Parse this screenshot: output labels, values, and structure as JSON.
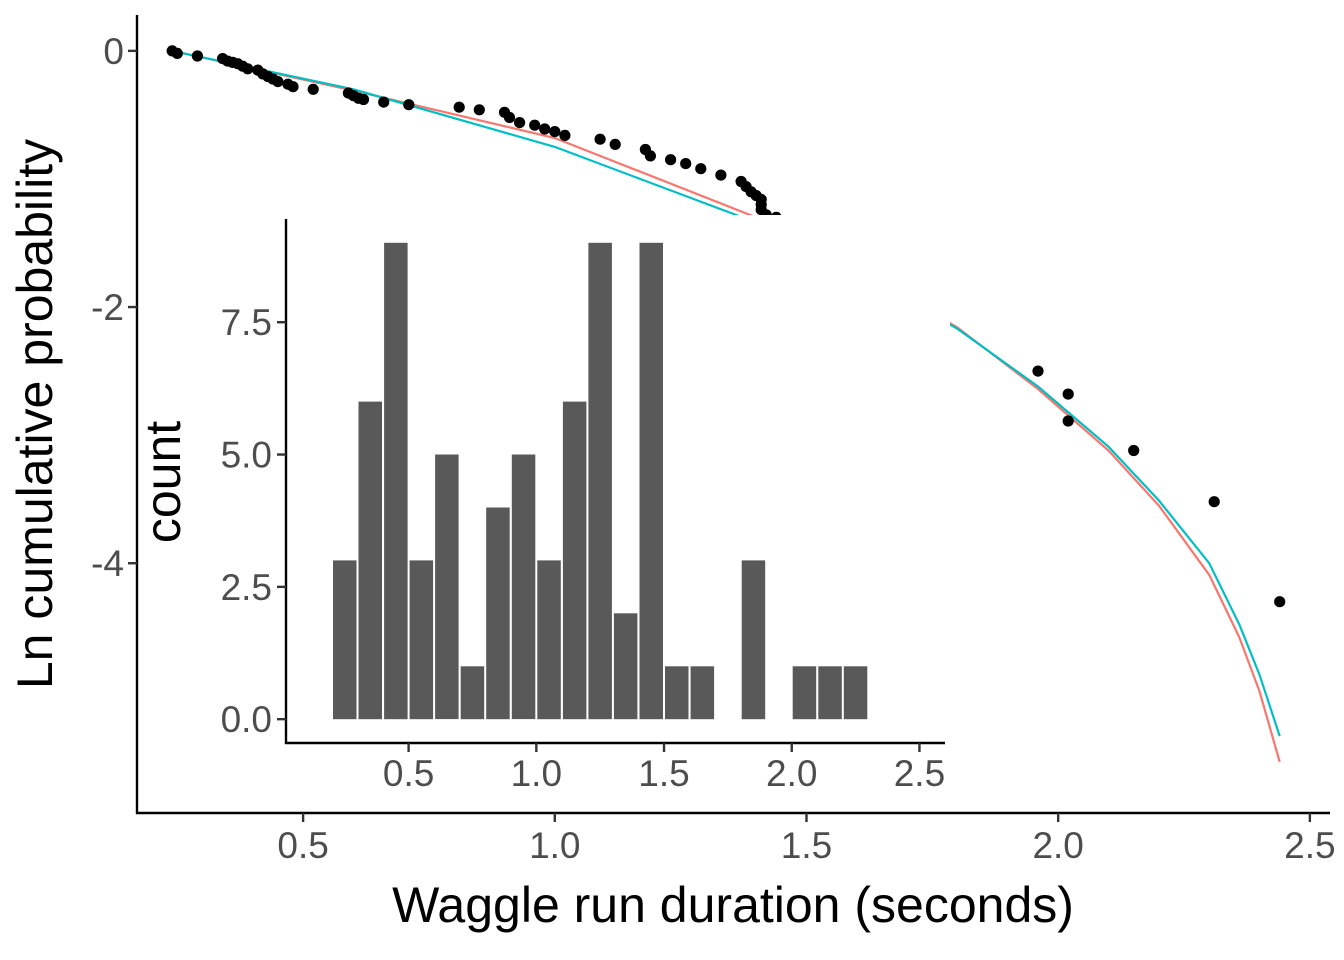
{
  "chart_data": [
    {
      "type": "scatter",
      "xlabel": "Waggle run duration (seconds)",
      "ylabel": "Ln cumulative probability",
      "xlim": [
        0.17,
        2.54
      ],
      "ylim": [
        -5.95,
        0.28
      ],
      "x_ticks": [
        0.5,
        1.0,
        1.5,
        2.0,
        2.5
      ],
      "x_tick_labels": [
        "0.5",
        "1.0",
        "1.5",
        "2.0",
        "2.5"
      ],
      "y_ticks": [
        0,
        -2,
        -4
      ],
      "y_tick_labels": [
        "0",
        "-2",
        "-4"
      ],
      "grid": false,
      "points_color": "#000000",
      "points": [
        [
          0.24,
          0.0
        ],
        [
          0.25,
          -0.02
        ],
        [
          0.29,
          -0.04
        ],
        [
          0.34,
          -0.06
        ],
        [
          0.35,
          -0.08
        ],
        [
          0.36,
          -0.09
        ],
        [
          0.37,
          -0.1
        ],
        [
          0.38,
          -0.12
        ],
        [
          0.39,
          -0.14
        ],
        [
          0.41,
          -0.15
        ],
        [
          0.42,
          -0.18
        ],
        [
          0.43,
          -0.2
        ],
        [
          0.44,
          -0.22
        ],
        [
          0.45,
          -0.24
        ],
        [
          0.47,
          -0.26
        ],
        [
          0.48,
          -0.28
        ],
        [
          0.52,
          -0.3
        ],
        [
          0.59,
          -0.33
        ],
        [
          0.6,
          -0.35
        ],
        [
          0.61,
          -0.37
        ],
        [
          0.62,
          -0.38
        ],
        [
          0.66,
          -0.4
        ],
        [
          0.71,
          -0.42
        ],
        [
          0.81,
          -0.44
        ],
        [
          0.85,
          -0.46
        ],
        [
          0.9,
          -0.48
        ],
        [
          0.91,
          -0.52
        ],
        [
          0.93,
          -0.56
        ],
        [
          0.96,
          -0.58
        ],
        [
          0.98,
          -0.61
        ],
        [
          1.0,
          -0.63
        ],
        [
          1.02,
          -0.66
        ],
        [
          1.09,
          -0.69
        ],
        [
          1.12,
          -0.73
        ],
        [
          1.18,
          -0.77
        ],
        [
          1.19,
          -0.82
        ],
        [
          1.23,
          -0.85
        ],
        [
          1.26,
          -0.88
        ],
        [
          1.29,
          -0.92
        ],
        [
          1.33,
          -0.97
        ],
        [
          1.37,
          -1.02
        ],
        [
          1.38,
          -1.06
        ],
        [
          1.39,
          -1.1
        ],
        [
          1.4,
          -1.13
        ],
        [
          1.41,
          -1.16
        ],
        [
          1.41,
          -1.2
        ],
        [
          1.41,
          -1.24
        ],
        [
          1.42,
          -1.28
        ],
        [
          1.44,
          -1.3
        ],
        [
          1.46,
          -1.35
        ],
        [
          1.49,
          -1.38
        ],
        [
          1.49,
          -1.48
        ],
        [
          1.5,
          -1.53
        ],
        [
          1.51,
          -1.58
        ],
        [
          1.51,
          -1.65
        ],
        [
          1.52,
          -1.73
        ],
        [
          1.52,
          -1.81
        ],
        [
          1.58,
          -1.9
        ],
        [
          1.6,
          -1.99
        ],
        [
          1.61,
          -2.09
        ],
        [
          1.64,
          -2.2
        ],
        [
          1.77,
          -2.35
        ],
        [
          1.96,
          -2.5
        ],
        [
          2.02,
          -2.68
        ],
        [
          2.02,
          -2.89
        ],
        [
          2.15,
          -3.12
        ],
        [
          2.31,
          -3.52
        ],
        [
          2.44,
          -4.3
        ]
      ],
      "series": [
        {
          "color": "#F8766D",
          "x": [
            0.24,
            0.6,
            1.0,
            1.4,
            1.6,
            1.8,
            1.96,
            2.1,
            2.2,
            2.3,
            2.36,
            2.4,
            2.44
          ],
          "y": [
            0.0,
            -0.31,
            -0.68,
            -1.3,
            -1.7,
            -2.16,
            -2.64,
            -3.12,
            -3.55,
            -4.09,
            -4.58,
            -5.0,
            -5.55
          ]
        },
        {
          "color": "#00BFC4",
          "x": [
            0.24,
            0.6,
            1.0,
            1.4,
            1.6,
            1.8,
            1.96,
            2.1,
            2.2,
            2.3,
            2.36,
            2.4,
            2.44
          ],
          "y": [
            0.0,
            -0.3,
            -0.75,
            -1.34,
            -1.73,
            -2.17,
            -2.62,
            -3.09,
            -3.51,
            -4.0,
            -4.48,
            -4.87,
            -5.35
          ]
        }
      ]
    },
    {
      "type": "bar",
      "xlabel": "",
      "ylabel": "count",
      "xlim": [
        0.02,
        2.6
      ],
      "ylim": [
        -0.45,
        9.45
      ],
      "bin_width": 0.1,
      "x_ticks": [
        0.5,
        1.0,
        1.5,
        2.0,
        2.5
      ],
      "x_tick_labels": [
        "0.5",
        "1.0",
        "1.5",
        "2.0",
        "2.5"
      ],
      "y_ticks": [
        0,
        2.5,
        5,
        7.5
      ],
      "y_tick_labels": [
        "0.0",
        "2.5",
        "5.0",
        "7.5"
      ],
      "grid": false,
      "bar_color": "#595959",
      "bin_centers": [
        0.25,
        0.35,
        0.45,
        0.55,
        0.65,
        0.75,
        0.85,
        0.95,
        1.05,
        1.15,
        1.25,
        1.35,
        1.45,
        1.55,
        1.65,
        1.75,
        1.85,
        1.95,
        2.05,
        2.15,
        2.25,
        2.35,
        2.45
      ],
      "values": [
        3,
        6,
        9,
        3,
        5,
        1,
        4,
        5,
        3,
        6,
        9,
        2,
        9,
        1,
        1,
        0,
        3,
        0,
        1,
        1,
        1,
        0,
        0
      ]
    }
  ]
}
